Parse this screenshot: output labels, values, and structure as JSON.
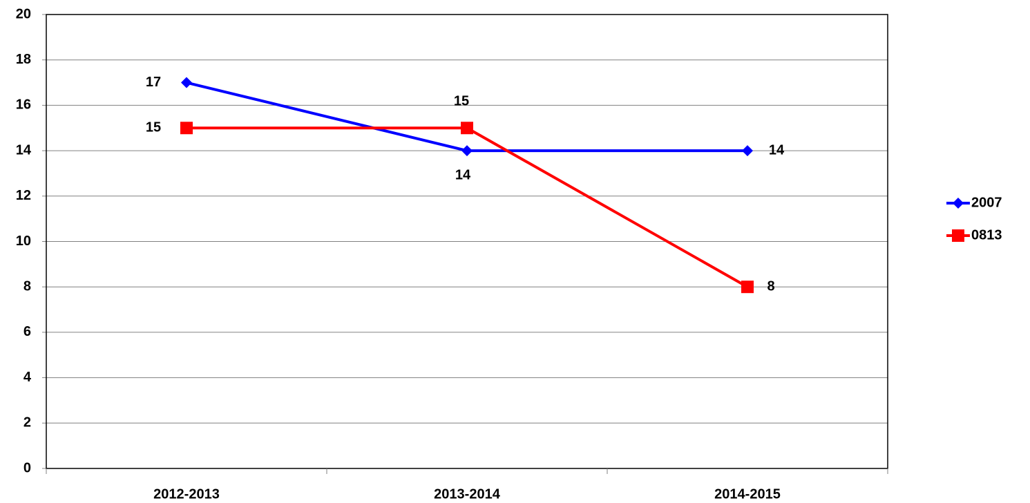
{
  "chart_data": {
    "type": "line",
    "categories": [
      "2012-2013",
      "2013-2014",
      "2014-2015"
    ],
    "series": [
      {
        "name": "2007",
        "color": "#0000ff",
        "marker": "diamond",
        "values": [
          17,
          14,
          14
        ]
      },
      {
        "name": "0813",
        "color": "#ff0000",
        "marker": "square",
        "values": [
          15,
          15,
          8
        ]
      }
    ],
    "ylim": [
      0,
      20
    ],
    "yticks": [
      0,
      2,
      4,
      6,
      8,
      10,
      12,
      14,
      16,
      18,
      20
    ],
    "grid": true,
    "legend": "right"
  }
}
